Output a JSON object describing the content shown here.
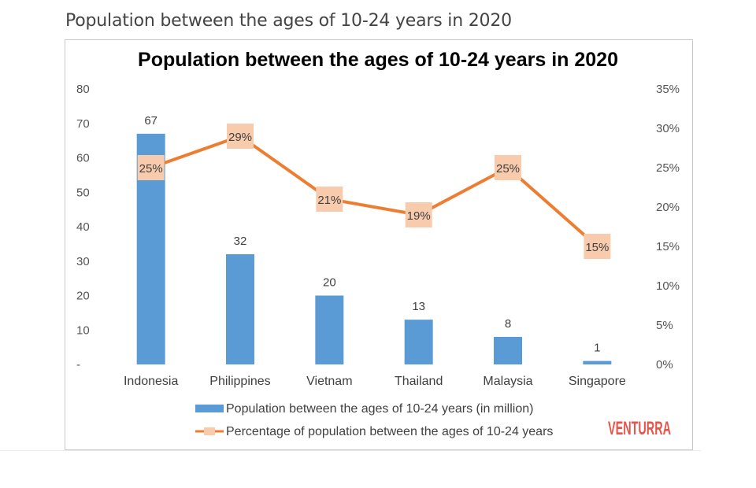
{
  "page_heading": "Population between the ages of 10-24 years in 2020",
  "brand": "VENTURRA",
  "colors": {
    "bar": "#5b9bd5",
    "line": "#ed7d31",
    "marker": "#f8cbad",
    "brand": "#e8534a"
  },
  "chart_data": {
    "type": "bar",
    "title": "Population between the ages of 10-24 years in 2020",
    "categories": [
      "Indonesia",
      "Philippines",
      "Vietnam",
      "Thailand",
      "Malaysia",
      "Singapore"
    ],
    "series": [
      {
        "name": "Population between the ages of 10-24 years (in million)",
        "type": "bar",
        "axis": "left",
        "values": [
          67,
          32,
          20,
          13,
          8,
          1
        ],
        "labels": [
          "67",
          "32",
          "20",
          "13",
          "8",
          "1"
        ]
      },
      {
        "name": "Percentage of population between the ages of 10-24 years",
        "type": "line",
        "axis": "right",
        "values": [
          25,
          29,
          21,
          19,
          25,
          15
        ],
        "labels": [
          "25%",
          "29%",
          "21%",
          "19%",
          "25%",
          "15%"
        ]
      }
    ],
    "y_left": {
      "ylim": [
        0,
        80
      ],
      "ticks": [
        "-",
        "10",
        "20",
        "30",
        "40",
        "50",
        "60",
        "70",
        "80"
      ]
    },
    "y_right": {
      "ylim": [
        0,
        35
      ],
      "ticks": [
        "0%",
        "5%",
        "10%",
        "15%",
        "20%",
        "25%",
        "30%",
        "35%"
      ]
    },
    "legend": "bottom",
    "grid": false
  }
}
